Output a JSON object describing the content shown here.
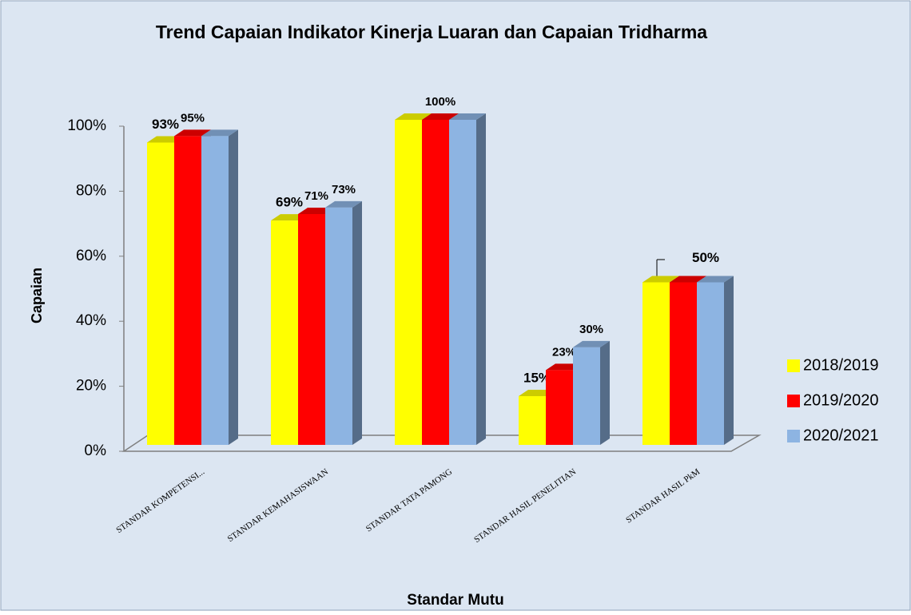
{
  "chart_data": {
    "type": "bar3d",
    "title": "Trend Capaian Indikator Kinerja Luaran dan Capaian Tridharma",
    "x_label": "Standar Mutu",
    "y_label": "Capaian",
    "categories": [
      "STANDAR KOMPETENSI...",
      "STANDAR KEMAHASISWAAN",
      "STANDAR TATA PAMONG",
      "STANDAR HASIL PENELITIAN",
      "STANDAR HASIL PkM"
    ],
    "series": [
      {
        "name": "2018/2019",
        "color": "#ffff00",
        "values": [
          93,
          69,
          100,
          15,
          50
        ],
        "value_labels": [
          "93%",
          "69%",
          null,
          "15%",
          "50%"
        ]
      },
      {
        "name": "2019/2020",
        "color": "#ff0000",
        "values": [
          95,
          71,
          100,
          23,
          50
        ],
        "value_labels": [
          "95%",
          "71%",
          "100%",
          "23%",
          null
        ]
      },
      {
        "name": "2020/2021",
        "color": "#8db4e2",
        "values": [
          95,
          73,
          100,
          30,
          50
        ],
        "value_labels": [
          null,
          "73%",
          null,
          "30%",
          null
        ]
      }
    ],
    "ylim": [
      0,
      100
    ],
    "yticks": [
      {
        "value": 0,
        "label": "0%"
      },
      {
        "value": 20,
        "label": "20%"
      },
      {
        "value": 40,
        "label": "40%"
      },
      {
        "value": 60,
        "label": "60%"
      },
      {
        "value": 80,
        "label": "80%"
      },
      {
        "value": 100,
        "label": "100%"
      }
    ],
    "legend": "right"
  }
}
